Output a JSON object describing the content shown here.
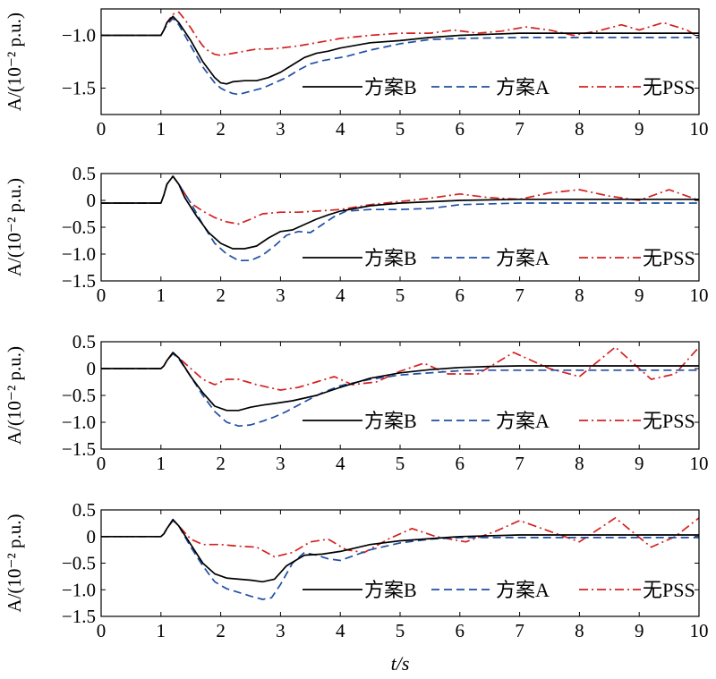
{
  "xlabel": "t/s",
  "ylabel": "A/(10⁻² p.u.)",
  "colors": {
    "B": "#000000",
    "A": "#1f4fa3",
    "N": "#d42020"
  },
  "chart_data": [
    {
      "type": "line",
      "xlim": [
        0,
        10
      ],
      "ylim": [
        -1.75,
        -0.75
      ],
      "xticks": [
        "0",
        "1",
        "2",
        "3",
        "4",
        "5",
        "6",
        "7",
        "8",
        "9",
        "10"
      ],
      "yticks": [
        {
          "v": -1.0,
          "label": "−1.0"
        },
        {
          "v": -1.5,
          "label": "−1.5"
        }
      ],
      "legend": [
        "方案B",
        "方案A",
        "无PSS"
      ],
      "series": [
        {
          "name": "方案B",
          "key": "B",
          "x": [
            0,
            1,
            1.05,
            1.1,
            1.2,
            1.3,
            1.5,
            1.7,
            1.9,
            2.0,
            2.1,
            2.2,
            2.4,
            2.6,
            2.8,
            3.0,
            3.2,
            3.4,
            3.6,
            3.8,
            4.0,
            4.5,
            5.0,
            5.5,
            6.0,
            6.5,
            7.0,
            8.0,
            9.0,
            10.0
          ],
          "y": [
            -1.0,
            -1.0,
            -0.95,
            -0.88,
            -0.82,
            -0.88,
            -1.05,
            -1.25,
            -1.4,
            -1.45,
            -1.46,
            -1.44,
            -1.43,
            -1.43,
            -1.4,
            -1.35,
            -1.28,
            -1.21,
            -1.17,
            -1.15,
            -1.12,
            -1.07,
            -1.05,
            -1.02,
            -1.0,
            -0.99,
            -0.98,
            -0.98,
            -0.98,
            -0.98
          ]
        },
        {
          "name": "方案A",
          "key": "A",
          "x": [
            0,
            1,
            1.05,
            1.1,
            1.2,
            1.3,
            1.5,
            1.7,
            1.9,
            2.0,
            2.1,
            2.2,
            2.3,
            2.5,
            2.7,
            2.9,
            3.1,
            3.3,
            3.5,
            3.7,
            3.9,
            4.1,
            4.5,
            5.0,
            5.5,
            6.0,
            7.0,
            8.0,
            9.0,
            10.0
          ],
          "y": [
            -1.0,
            -1.0,
            -0.95,
            -0.9,
            -0.84,
            -0.9,
            -1.1,
            -1.3,
            -1.45,
            -1.5,
            -1.53,
            -1.55,
            -1.56,
            -1.53,
            -1.5,
            -1.45,
            -1.4,
            -1.33,
            -1.27,
            -1.24,
            -1.22,
            -1.2,
            -1.14,
            -1.08,
            -1.04,
            -1.03,
            -1.02,
            -1.02,
            -1.02,
            -1.02
          ]
        },
        {
          "name": "无PSS",
          "key": "N",
          "x": [
            0,
            1,
            1.05,
            1.1,
            1.2,
            1.3,
            1.4,
            1.5,
            1.6,
            1.7,
            1.8,
            1.9,
            2.0,
            2.2,
            2.4,
            2.6,
            2.8,
            3.0,
            3.3,
            3.6,
            4.0,
            4.5,
            5.0,
            5.5,
            5.9,
            6.3,
            6.7,
            7.1,
            7.5,
            7.9,
            8.3,
            8.7,
            9.0,
            9.4,
            9.8,
            10.0
          ],
          "y": [
            -1.0,
            -1.0,
            -0.95,
            -0.88,
            -0.8,
            -0.78,
            -0.85,
            -0.93,
            -1.02,
            -1.1,
            -1.15,
            -1.18,
            -1.19,
            -1.17,
            -1.15,
            -1.13,
            -1.13,
            -1.12,
            -1.1,
            -1.07,
            -1.03,
            -1.0,
            -0.98,
            -0.98,
            -0.95,
            -0.98,
            -0.96,
            -0.92,
            -0.95,
            -1.0,
            -0.96,
            -0.9,
            -0.95,
            -0.88,
            -0.95,
            -1.02
          ]
        }
      ]
    },
    {
      "type": "line",
      "xlim": [
        0,
        10
      ],
      "ylim": [
        -1.5,
        0.5
      ],
      "xticks": [
        "0",
        "1",
        "2",
        "3",
        "4",
        "5",
        "6",
        "7",
        "8",
        "9",
        "10"
      ],
      "yticks": [
        {
          "v": 0.5,
          "label": "0.5"
        },
        {
          "v": 0,
          "label": "0"
        },
        {
          "v": -0.5,
          "label": "−0.5"
        },
        {
          "v": -1.0,
          "label": "−1.0"
        },
        {
          "v": -1.5,
          "label": "−1.5"
        }
      ],
      "legend": [
        "方案B",
        "方案A",
        "无PSS"
      ],
      "series": [
        {
          "name": "方案B",
          "key": "B",
          "x": [
            0,
            1,
            1.05,
            1.1,
            1.2,
            1.3,
            1.4,
            1.6,
            1.8,
            2.0,
            2.2,
            2.4,
            2.6,
            2.8,
            3.0,
            3.2,
            3.4,
            3.6,
            3.8,
            4.0,
            4.5,
            5.0,
            6.0,
            7.0,
            8.0,
            9.0,
            10.0
          ],
          "y": [
            -0.05,
            -0.05,
            0.1,
            0.3,
            0.45,
            0.3,
            0.05,
            -0.3,
            -0.6,
            -0.8,
            -0.9,
            -0.9,
            -0.85,
            -0.7,
            -0.58,
            -0.55,
            -0.45,
            -0.35,
            -0.27,
            -0.2,
            -0.1,
            -0.05,
            0.0,
            0.02,
            0.02,
            0.02,
            0.02
          ]
        },
        {
          "name": "方案A",
          "key": "A",
          "x": [
            0,
            1,
            1.05,
            1.1,
            1.2,
            1.3,
            1.5,
            1.7,
            1.9,
            2.1,
            2.3,
            2.5,
            2.7,
            2.9,
            3.1,
            3.3,
            3.5,
            3.7,
            3.9,
            4.1,
            4.5,
            5.0,
            5.5,
            6.0,
            7.0,
            8.0,
            9.0,
            10.0
          ],
          "y": [
            -0.05,
            -0.05,
            0.1,
            0.3,
            0.45,
            0.3,
            -0.05,
            -0.45,
            -0.8,
            -1.0,
            -1.12,
            -1.12,
            -1.02,
            -0.85,
            -0.65,
            -0.58,
            -0.6,
            -0.45,
            -0.3,
            -0.2,
            -0.17,
            -0.17,
            -0.15,
            -0.08,
            -0.05,
            -0.05,
            -0.05,
            -0.05
          ]
        },
        {
          "name": "无PSS",
          "key": "N",
          "x": [
            0,
            1,
            1.05,
            1.1,
            1.2,
            1.3,
            1.5,
            1.7,
            1.9,
            2.1,
            2.3,
            2.5,
            2.7,
            3.0,
            3.3,
            3.6,
            4.0,
            4.5,
            5.0,
            5.5,
            6.0,
            6.5,
            7.0,
            7.5,
            8.0,
            8.5,
            9.0,
            9.5,
            10.0
          ],
          "y": [
            -0.05,
            -0.05,
            0.1,
            0.3,
            0.45,
            0.3,
            -0.05,
            -0.2,
            -0.32,
            -0.4,
            -0.44,
            -0.35,
            -0.25,
            -0.22,
            -0.22,
            -0.2,
            -0.17,
            -0.08,
            -0.02,
            0.04,
            0.12,
            0.05,
            0.02,
            0.14,
            0.2,
            0.08,
            0.0,
            0.2,
            0.0
          ]
        }
      ]
    },
    {
      "type": "line",
      "xlim": [
        0,
        10
      ],
      "ylim": [
        -1.5,
        0.5
      ],
      "xticks": [
        "0",
        "1",
        "2",
        "3",
        "4",
        "5",
        "6",
        "7",
        "8",
        "9",
        "10"
      ],
      "yticks": [
        {
          "v": 0.5,
          "label": "0.5"
        },
        {
          "v": 0,
          "label": "0"
        },
        {
          "v": -0.5,
          "label": "−0.5"
        },
        {
          "v": -1.0,
          "label": "−1.0"
        },
        {
          "v": -1.5,
          "label": "−1.5"
        }
      ],
      "legend": [
        "方案B",
        "方案A",
        "无PSS"
      ],
      "series": [
        {
          "name": "方案B",
          "key": "B",
          "x": [
            0,
            1,
            1.05,
            1.1,
            1.2,
            1.3,
            1.5,
            1.7,
            1.9,
            2.1,
            2.3,
            2.5,
            2.7,
            2.9,
            3.2,
            3.6,
            4.0,
            4.5,
            5.0,
            5.5,
            6.0,
            6.5,
            7.0,
            8.0,
            9.0,
            10.0
          ],
          "y": [
            0.0,
            0.0,
            0.05,
            0.15,
            0.3,
            0.2,
            -0.15,
            -0.45,
            -0.7,
            -0.78,
            -0.78,
            -0.72,
            -0.68,
            -0.65,
            -0.6,
            -0.5,
            -0.35,
            -0.18,
            -0.08,
            -0.02,
            0.02,
            0.04,
            0.05,
            0.05,
            0.05,
            0.05
          ]
        },
        {
          "name": "方案A",
          "key": "A",
          "x": [
            0,
            1,
            1.05,
            1.1,
            1.2,
            1.3,
            1.5,
            1.7,
            1.9,
            2.1,
            2.3,
            2.5,
            2.7,
            2.9,
            3.1,
            3.4,
            3.7,
            4.0,
            4.5,
            5.0,
            5.5,
            6.0,
            6.5,
            7.0,
            8.0,
            9.0,
            10.0
          ],
          "y": [
            0.0,
            0.0,
            0.05,
            0.15,
            0.28,
            0.18,
            -0.15,
            -0.5,
            -0.8,
            -1.0,
            -1.07,
            -1.05,
            -0.98,
            -0.9,
            -0.8,
            -0.62,
            -0.45,
            -0.32,
            -0.2,
            -0.12,
            -0.08,
            -0.04,
            -0.03,
            -0.03,
            -0.03,
            -0.03,
            -0.03
          ]
        },
        {
          "name": "无PSS",
          "key": "N",
          "x": [
            0,
            1,
            1.05,
            1.1,
            1.2,
            1.3,
            1.5,
            1.7,
            1.9,
            2.1,
            2.3,
            2.6,
            3.0,
            3.3,
            3.6,
            3.9,
            4.2,
            4.6,
            5.0,
            5.4,
            5.8,
            6.3,
            6.9,
            7.5,
            8.0,
            8.6,
            9.2,
            9.6,
            10.0
          ],
          "y": [
            0.0,
            0.0,
            0.05,
            0.15,
            0.28,
            0.2,
            0.0,
            -0.2,
            -0.3,
            -0.2,
            -0.2,
            -0.3,
            -0.4,
            -0.35,
            -0.25,
            -0.15,
            -0.3,
            -0.25,
            -0.05,
            0.1,
            -0.1,
            -0.1,
            0.3,
            0.0,
            -0.15,
            0.4,
            -0.2,
            -0.1,
            0.4
          ]
        }
      ]
    },
    {
      "type": "line",
      "xlim": [
        0,
        10
      ],
      "ylim": [
        -1.5,
        0.5
      ],
      "xticks": [
        "0",
        "1",
        "2",
        "3",
        "4",
        "5",
        "6",
        "7",
        "8",
        "9",
        "10"
      ],
      "yticks": [
        {
          "v": 0.5,
          "label": "0.5"
        },
        {
          "v": 0,
          "label": "0"
        },
        {
          "v": -0.5,
          "label": "−0.5"
        },
        {
          "v": -1.0,
          "label": "−1.0"
        },
        {
          "v": -1.5,
          "label": "−1.5"
        }
      ],
      "legend": [
        "方案B",
        "方案A",
        "无PSS"
      ],
      "series": [
        {
          "name": "方案B",
          "key": "B",
          "x": [
            0,
            1,
            1.05,
            1.1,
            1.2,
            1.3,
            1.5,
            1.7,
            1.9,
            2.1,
            2.3,
            2.5,
            2.7,
            2.9,
            3.1,
            3.4,
            3.7,
            4.0,
            4.5,
            5.0,
            5.5,
            6.0,
            7.0,
            8.0,
            9.0,
            10.0
          ],
          "y": [
            0.0,
            0.0,
            0.05,
            0.15,
            0.32,
            0.2,
            -0.15,
            -0.5,
            -0.7,
            -0.78,
            -0.8,
            -0.82,
            -0.85,
            -0.8,
            -0.55,
            -0.35,
            -0.33,
            -0.28,
            -0.15,
            -0.08,
            -0.04,
            0.0,
            0.03,
            0.03,
            0.03,
            0.03
          ]
        },
        {
          "name": "方案A",
          "key": "A",
          "x": [
            0,
            1,
            1.05,
            1.1,
            1.2,
            1.3,
            1.5,
            1.7,
            1.9,
            2.1,
            2.3,
            2.5,
            2.7,
            2.85,
            3.0,
            3.2,
            3.4,
            3.6,
            3.8,
            4.0,
            4.5,
            5.0,
            5.5,
            6.0,
            7.0,
            8.0,
            9.0,
            10.0
          ],
          "y": [
            0.0,
            0.0,
            0.05,
            0.15,
            0.3,
            0.2,
            -0.2,
            -0.55,
            -0.85,
            -0.98,
            -1.05,
            -1.12,
            -1.18,
            -1.15,
            -0.9,
            -0.5,
            -0.3,
            -0.35,
            -0.42,
            -0.45,
            -0.25,
            -0.12,
            -0.05,
            -0.02,
            -0.02,
            -0.02,
            -0.02,
            -0.02
          ]
        },
        {
          "name": "无PSS",
          "key": "N",
          "x": [
            0,
            1,
            1.05,
            1.1,
            1.2,
            1.3,
            1.5,
            1.7,
            2.0,
            2.3,
            2.6,
            2.9,
            3.2,
            3.5,
            3.8,
            4.1,
            4.4,
            4.8,
            5.2,
            5.6,
            6.1,
            6.6,
            7.0,
            7.5,
            8.0,
            8.6,
            9.2,
            9.6,
            10.0
          ],
          "y": [
            0.0,
            0.0,
            0.05,
            0.15,
            0.3,
            0.2,
            -0.05,
            -0.15,
            -0.15,
            -0.18,
            -0.2,
            -0.38,
            -0.3,
            -0.1,
            -0.05,
            -0.25,
            -0.3,
            -0.05,
            0.15,
            0.0,
            -0.1,
            0.1,
            0.3,
            0.1,
            -0.1,
            0.35,
            -0.2,
            0.0,
            0.35
          ]
        }
      ]
    }
  ]
}
